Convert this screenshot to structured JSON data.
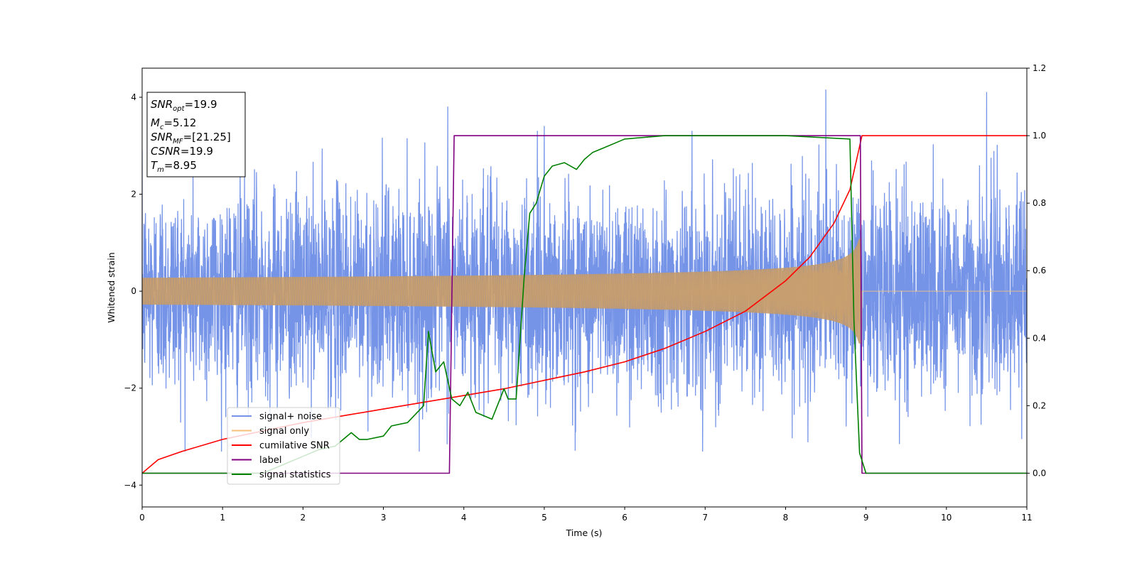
{
  "chart_data": {
    "type": "line",
    "xlabel": "Time (s)",
    "ylabel": "Whitened strain",
    "xlim": [
      0,
      11
    ],
    "ylim": [
      -4.45,
      4.6
    ],
    "y2lim": [
      -0.1,
      1.2
    ],
    "x_ticks": [
      0,
      1,
      2,
      3,
      4,
      5,
      6,
      7,
      8,
      9,
      10,
      11
    ],
    "y_ticks": [
      4,
      2,
      0,
      -2,
      -4
    ],
    "y_tick_labels": [
      "4",
      "2",
      "0",
      "−2",
      "−4"
    ],
    "y2_ticks": [
      0.0,
      0.2,
      0.4,
      0.6,
      0.8,
      1.0,
      1.2
    ],
    "y2_tick_labels": [
      "0.0",
      "0.2",
      "0.4",
      "0.6",
      "0.8",
      "1.0",
      "1.2"
    ],
    "grid": false,
    "legend_position": "lower-left",
    "info_box": {
      "snr_opt_symbol": "SNR",
      "snr_opt_sub": "opt",
      "snr_opt_value": "=19.9",
      "mc_symbol": "M",
      "mc_sub": "c",
      "mc_value": "=5.12",
      "snr_mf_symbol": "SNR",
      "snr_mf_sub": "MF",
      "snr_mf_value": "=[21.25]",
      "csnr_symbol": "CSNR",
      "csnr_value": "=19.9",
      "tm_symbol": "T",
      "tm_sub": "m",
      "tm_value": "=8.95"
    },
    "series": [
      {
        "name": "signal+ noise",
        "axis": "left",
        "color": "#7594e8",
        "description_values": {
          "t_start": 0,
          "t_end": 11,
          "noise_sigma": 1.0,
          "spike_times": [
            3.8,
            5.0,
            8.5,
            10.5
          ],
          "spike_peaks": [
            3.8,
            3.4,
            4.15,
            4.1
          ]
        }
      },
      {
        "name": "signal only",
        "axis": "left",
        "color": "#f5c27a",
        "chirp": {
          "t_start": 0,
          "t_merge": 8.95,
          "amp_start": 0.1,
          "amp_peak": 1.1
        }
      },
      {
        "name": "cumilative SNR",
        "axis": "right",
        "color": "#ff0000",
        "x": [
          0,
          0.2,
          0.5,
          1,
          1.5,
          2,
          2.5,
          3,
          3.5,
          4,
          4.5,
          5,
          5.5,
          6,
          6.5,
          7,
          7.5,
          8,
          8.3,
          8.6,
          8.8,
          8.95,
          11
        ],
        "y": [
          0.0,
          0.04,
          0.065,
          0.1,
          0.125,
          0.15,
          0.17,
          0.19,
          0.21,
          0.23,
          0.25,
          0.275,
          0.3,
          0.33,
          0.37,
          0.42,
          0.48,
          0.57,
          0.64,
          0.74,
          0.84,
          1.0,
          1.0
        ]
      },
      {
        "name": "label",
        "axis": "right",
        "color": "#800080",
        "x": [
          0,
          3.82,
          3.88,
          8.93,
          8.95,
          11
        ],
        "y": [
          0,
          0,
          1,
          1,
          0,
          0
        ]
      },
      {
        "name": "signal statistics",
        "axis": "right",
        "color": "#008000",
        "x": [
          0,
          1.5,
          1.7,
          2.0,
          2.2,
          2.4,
          2.6,
          2.7,
          2.8,
          3.0,
          3.1,
          3.3,
          3.5,
          3.56,
          3.65,
          3.75,
          3.85,
          3.95,
          4.05,
          4.15,
          4.35,
          4.5,
          4.55,
          4.65,
          4.75,
          4.82,
          4.9,
          5.0,
          5.1,
          5.25,
          5.4,
          5.5,
          5.6,
          5.7,
          6.0,
          6.5,
          7.0,
          8.0,
          8.8,
          8.85,
          8.92,
          9.0,
          11
        ],
        "y": [
          0.0,
          0.0,
          0.02,
          0.05,
          0.07,
          0.08,
          0.12,
          0.1,
          0.1,
          0.11,
          0.14,
          0.15,
          0.2,
          0.42,
          0.3,
          0.33,
          0.22,
          0.2,
          0.24,
          0.18,
          0.16,
          0.25,
          0.22,
          0.22,
          0.58,
          0.77,
          0.8,
          0.88,
          0.91,
          0.92,
          0.9,
          0.93,
          0.95,
          0.96,
          0.99,
          1.0,
          1.0,
          1.0,
          0.99,
          0.45,
          0.06,
          0.0,
          0.0
        ]
      }
    ]
  }
}
